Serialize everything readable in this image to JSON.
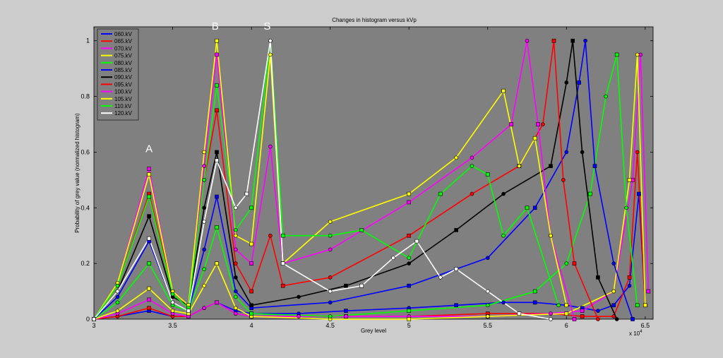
{
  "chart_data": {
    "type": "line",
    "title": "Changes in histogram versus kVp",
    "xlabel": "Grey level",
    "ylabel": "Probability of grey value (normalized histogram)",
    "x_multiplier_label": "x 10",
    "x_multiplier_exp": "4",
    "xlim": [
      3.0,
      6.55
    ],
    "ylim": [
      0,
      1.05
    ],
    "x_ticks": [
      "3",
      "3.5",
      "4",
      "4.5",
      "5",
      "5.5",
      "6",
      "6.5"
    ],
    "y_ticks": [
      "0",
      "0.2",
      "0.4",
      "0.6",
      "0.8",
      "1"
    ],
    "background_color": "#808080",
    "legend_position": "top-left",
    "annotations": [
      {
        "text": "A",
        "x": 3.35,
        "y": 0.6
      },
      {
        "text": "B",
        "x": 3.77,
        "y": 1.04
      },
      {
        "text": "S",
        "x": 4.1,
        "y": 1.04
      }
    ],
    "series": [
      {
        "name": "060.kV",
        "color": "#0000ff",
        "x": [
          3.0,
          3.15,
          3.35,
          3.5,
          3.6,
          3.7,
          3.78,
          3.9,
          4.0,
          4.3,
          4.6,
          5.0,
          5.3,
          5.6,
          5.8,
          6.0,
          6.1,
          6.2,
          6.3,
          6.4,
          6.46,
          6.5
        ],
        "y": [
          0.0,
          0.01,
          0.03,
          0.01,
          0.01,
          0.04,
          0.06,
          0.03,
          0.02,
          0.02,
          0.03,
          0.04,
          0.05,
          0.06,
          0.06,
          0.05,
          0.04,
          0.03,
          0.05,
          0.12,
          0.45,
          0.05
        ]
      },
      {
        "name": "065.kV",
        "color": "#ff0000",
        "x": [
          3.0,
          3.15,
          3.35,
          3.5,
          3.6,
          3.7,
          3.78,
          3.9,
          4.0,
          4.3,
          4.6,
          5.0,
          5.5,
          5.9,
          6.1,
          6.3,
          6.4,
          6.45,
          6.5
        ],
        "y": [
          0.0,
          0.01,
          0.04,
          0.01,
          0.01,
          0.04,
          0.06,
          0.02,
          0.01,
          0.01,
          0.01,
          0.01,
          0.02,
          0.02,
          0.01,
          0.01,
          0.15,
          0.6,
          0.05
        ]
      },
      {
        "name": "070.kV",
        "color": "#ff00ff",
        "x": [
          3.0,
          3.15,
          3.35,
          3.5,
          3.6,
          3.7,
          3.78,
          3.9,
          4.0,
          4.3,
          4.6,
          5.0,
          5.5,
          5.9,
          6.1,
          6.3,
          6.42,
          6.47,
          6.52
        ],
        "y": [
          0.0,
          0.02,
          0.07,
          0.02,
          0.01,
          0.04,
          0.06,
          0.02,
          0.01,
          0.01,
          0.01,
          0.01,
          0.01,
          0.02,
          0.03,
          0.1,
          0.5,
          0.95,
          0.1
        ]
      },
      {
        "name": "075.kV",
        "color": "#ffff00",
        "x": [
          3.0,
          3.15,
          3.35,
          3.5,
          3.6,
          3.7,
          3.78,
          3.9,
          4.0,
          4.5,
          5.0,
          5.5,
          6.0,
          6.3,
          6.4,
          6.45,
          6.5
        ],
        "y": [
          0.0,
          0.03,
          0.11,
          0.03,
          0.02,
          0.12,
          0.2,
          0.04,
          0.01,
          0.0,
          0.0,
          0.01,
          0.02,
          0.1,
          0.5,
          0.95,
          0.05
        ]
      },
      {
        "name": "080.kV",
        "color": "#00ff00",
        "x": [
          3.0,
          3.15,
          3.35,
          3.5,
          3.6,
          3.7,
          3.78,
          3.9,
          4.0,
          4.5,
          5.0,
          5.5,
          5.8,
          6.0,
          6.15,
          6.25,
          6.32,
          6.38,
          6.45
        ],
        "y": [
          0.0,
          0.06,
          0.2,
          0.05,
          0.03,
          0.18,
          0.33,
          0.08,
          0.02,
          0.01,
          0.03,
          0.05,
          0.1,
          0.2,
          0.45,
          0.8,
          0.95,
          0.4,
          0.05
        ]
      },
      {
        "name": "085.kV",
        "color": "#0000ff",
        "x": [
          3.0,
          3.15,
          3.35,
          3.5,
          3.6,
          3.7,
          3.78,
          3.9,
          4.0,
          4.5,
          5.0,
          5.5,
          5.8,
          6.0,
          6.08,
          6.12,
          6.18,
          6.3,
          6.42
        ],
        "y": [
          0.0,
          0.08,
          0.28,
          0.06,
          0.03,
          0.25,
          0.44,
          0.1,
          0.04,
          0.06,
          0.12,
          0.22,
          0.4,
          0.6,
          0.85,
          1.0,
          0.55,
          0.2,
          0.0
        ]
      },
      {
        "name": "090.kV",
        "color": "#000000",
        "x": [
          3.0,
          3.15,
          3.35,
          3.5,
          3.6,
          3.7,
          3.78,
          3.9,
          4.0,
          4.3,
          4.6,
          5.0,
          5.3,
          5.6,
          5.9,
          6.0,
          6.04,
          6.1,
          6.2,
          6.32
        ],
        "y": [
          0.0,
          0.1,
          0.37,
          0.08,
          0.05,
          0.4,
          0.6,
          0.15,
          0.05,
          0.08,
          0.12,
          0.2,
          0.32,
          0.45,
          0.55,
          0.85,
          1.0,
          0.6,
          0.15,
          0.0
        ]
      },
      {
        "name": "095.kV",
        "color": "#ff0000",
        "x": [
          3.0,
          3.15,
          3.35,
          3.5,
          3.6,
          3.7,
          3.78,
          3.9,
          4.0,
          4.12,
          4.2,
          4.5,
          5.0,
          5.4,
          5.7,
          5.85,
          5.92,
          5.98,
          6.05,
          6.2
        ],
        "y": [
          0.0,
          0.12,
          0.45,
          0.1,
          0.05,
          0.5,
          0.75,
          0.2,
          0.1,
          0.3,
          0.12,
          0.15,
          0.3,
          0.45,
          0.55,
          0.7,
          1.0,
          0.5,
          0.2,
          0.0
        ]
      },
      {
        "name": "100.kV",
        "color": "#ff00ff",
        "x": [
          3.0,
          3.15,
          3.35,
          3.5,
          3.6,
          3.7,
          3.78,
          3.9,
          4.0,
          4.12,
          4.2,
          4.5,
          5.0,
          5.4,
          5.65,
          5.75,
          5.82,
          5.9,
          6.05
        ],
        "y": [
          0.0,
          0.13,
          0.54,
          0.1,
          0.05,
          0.55,
          0.95,
          0.25,
          0.2,
          0.62,
          0.2,
          0.25,
          0.42,
          0.58,
          0.7,
          1.0,
          0.7,
          0.3,
          0.0
        ]
      },
      {
        "name": "105.kV",
        "color": "#ffff00",
        "x": [
          3.0,
          3.15,
          3.35,
          3.5,
          3.6,
          3.7,
          3.78,
          3.9,
          4.0,
          4.12,
          4.2,
          4.5,
          5.0,
          5.3,
          5.6,
          5.7,
          5.8,
          5.9,
          6.0
        ],
        "y": [
          0.0,
          0.13,
          0.52,
          0.1,
          0.05,
          0.6,
          1.0,
          0.3,
          0.27,
          0.95,
          0.2,
          0.35,
          0.45,
          0.58,
          0.82,
          0.55,
          0.65,
          0.3,
          0.05
        ]
      },
      {
        "name": "110.kV",
        "color": "#00ff00",
        "x": [
          3.0,
          3.15,
          3.35,
          3.5,
          3.6,
          3.7,
          3.78,
          3.9,
          4.0,
          4.12,
          4.2,
          4.5,
          4.7,
          5.0,
          5.2,
          5.4,
          5.5,
          5.6,
          5.75,
          5.95
        ],
        "y": [
          0.0,
          0.12,
          0.44,
          0.09,
          0.04,
          0.5,
          0.84,
          0.32,
          0.4,
          1.0,
          0.3,
          0.3,
          0.32,
          0.22,
          0.45,
          0.55,
          0.52,
          0.3,
          0.4,
          0.05
        ]
      },
      {
        "name": "120.kV",
        "color": "#ffffff",
        "x": [
          3.0,
          3.15,
          3.35,
          3.5,
          3.6,
          3.7,
          3.78,
          3.9,
          3.97,
          4.12,
          4.2,
          4.5,
          4.7,
          4.9,
          5.05,
          5.2,
          5.3,
          5.5,
          5.7,
          5.9
        ],
        "y": [
          0.0,
          0.1,
          0.29,
          0.06,
          0.03,
          0.35,
          0.57,
          0.4,
          0.45,
          1.0,
          0.2,
          0.1,
          0.12,
          0.22,
          0.28,
          0.15,
          0.18,
          0.1,
          0.02,
          0.0
        ]
      }
    ]
  }
}
